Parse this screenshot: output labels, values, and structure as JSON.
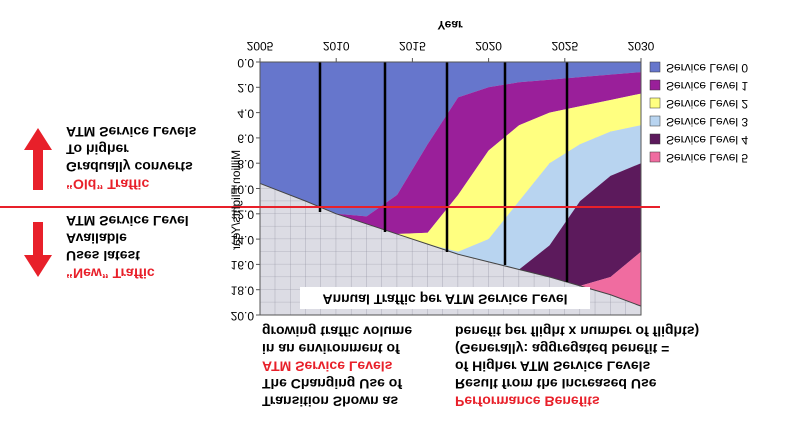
{
  "chart_data": {
    "type": "area",
    "title": "Annual Traffic per ATM Service Level",
    "x_label": "Year",
    "y_label": "Million Flights/Year",
    "x": [
      2005,
      2008,
      2010,
      2012,
      2014,
      2016,
      2018,
      2020,
      2022,
      2024,
      2026,
      2028,
      2030
    ],
    "xlim": [
      2005,
      2030
    ],
    "xticks": [
      2005,
      2010,
      2015,
      2020,
      2025,
      2030
    ],
    "ylim": [
      0,
      20
    ],
    "yticks": [
      {
        "value": 0,
        "label": "0.0"
      },
      {
        "value": 2,
        "label": "2.0"
      },
      {
        "value": 4,
        "label": "4.0"
      },
      {
        "value": 6,
        "label": "6.0"
      },
      {
        "value": 8,
        "label": "8.0"
      },
      {
        "value": 10,
        "label": "10.0"
      },
      {
        "value": 12,
        "label": "12.0"
      },
      {
        "value": 14,
        "label": "14.0"
      },
      {
        "value": 16,
        "label": "16.0"
      },
      {
        "value": 18,
        "label": "18.0"
      },
      {
        "value": 20,
        "label": "20.0"
      }
    ],
    "series": [
      {
        "name": "Service Level 0",
        "color": "#6676cc",
        "values": [
          9.6,
          11.0,
          12.0,
          12.2,
          10.5,
          6.5,
          2.8,
          2.0,
          1.6,
          1.4,
          1.2,
          1.0,
          0.8
        ]
      },
      {
        "name": "Service Level 1",
        "color": "#9a1f9a",
        "values": [
          0,
          0,
          0,
          0.6,
          3.1,
          7.0,
          7.7,
          5.0,
          3.4,
          2.6,
          2.3,
          2.0,
          1.7
        ]
      },
      {
        "name": "Service Level 2",
        "color": "#ffff80",
        "values": [
          0,
          0,
          0,
          0,
          0,
          0.9,
          4.5,
          7.0,
          6.0,
          4.0,
          3.0,
          2.5,
          2.5
        ]
      },
      {
        "name": "Service Level 3",
        "color": "#b8d4f0",
        "values": [
          0,
          0,
          0,
          0,
          0,
          0,
          0.2,
          1.8,
          5.4,
          6.5,
          4.5,
          3.5,
          3.0
        ]
      },
      {
        "name": "Service Level 4",
        "color": "#5c1a5c",
        "values": [
          0,
          0,
          0,
          0,
          0,
          0,
          0,
          0,
          0,
          2.5,
          6.7,
          8.0,
          7.0
        ]
      },
      {
        "name": "Service Level 5",
        "color": "#f06ca0",
        "values": [
          0,
          0,
          0,
          0,
          0,
          0,
          0,
          0,
          0,
          0,
          0,
          1.4,
          4.3
        ]
      }
    ],
    "annotations": {
      "old_traffic": [
        "“Old” Traffic",
        "Gradually converts",
        "To higher",
        "ATM Service Levels"
      ],
      "new_traffic": [
        "“New” Traffic",
        "Uses latest",
        "Available",
        "ATM Service Level"
      ],
      "transition": [
        "Transition Shown as",
        "The Changing Use of",
        "ATM Service Levels",
        "in an environment of",
        "growing traffic volume"
      ],
      "benefits": [
        "Performance Benefits",
        "Result from the Increased Use",
        "of Higher ATM Service Levels",
        "(Generally: aggregated benefit =",
        "benefit per flight  x  number of flights)"
      ]
    }
  }
}
